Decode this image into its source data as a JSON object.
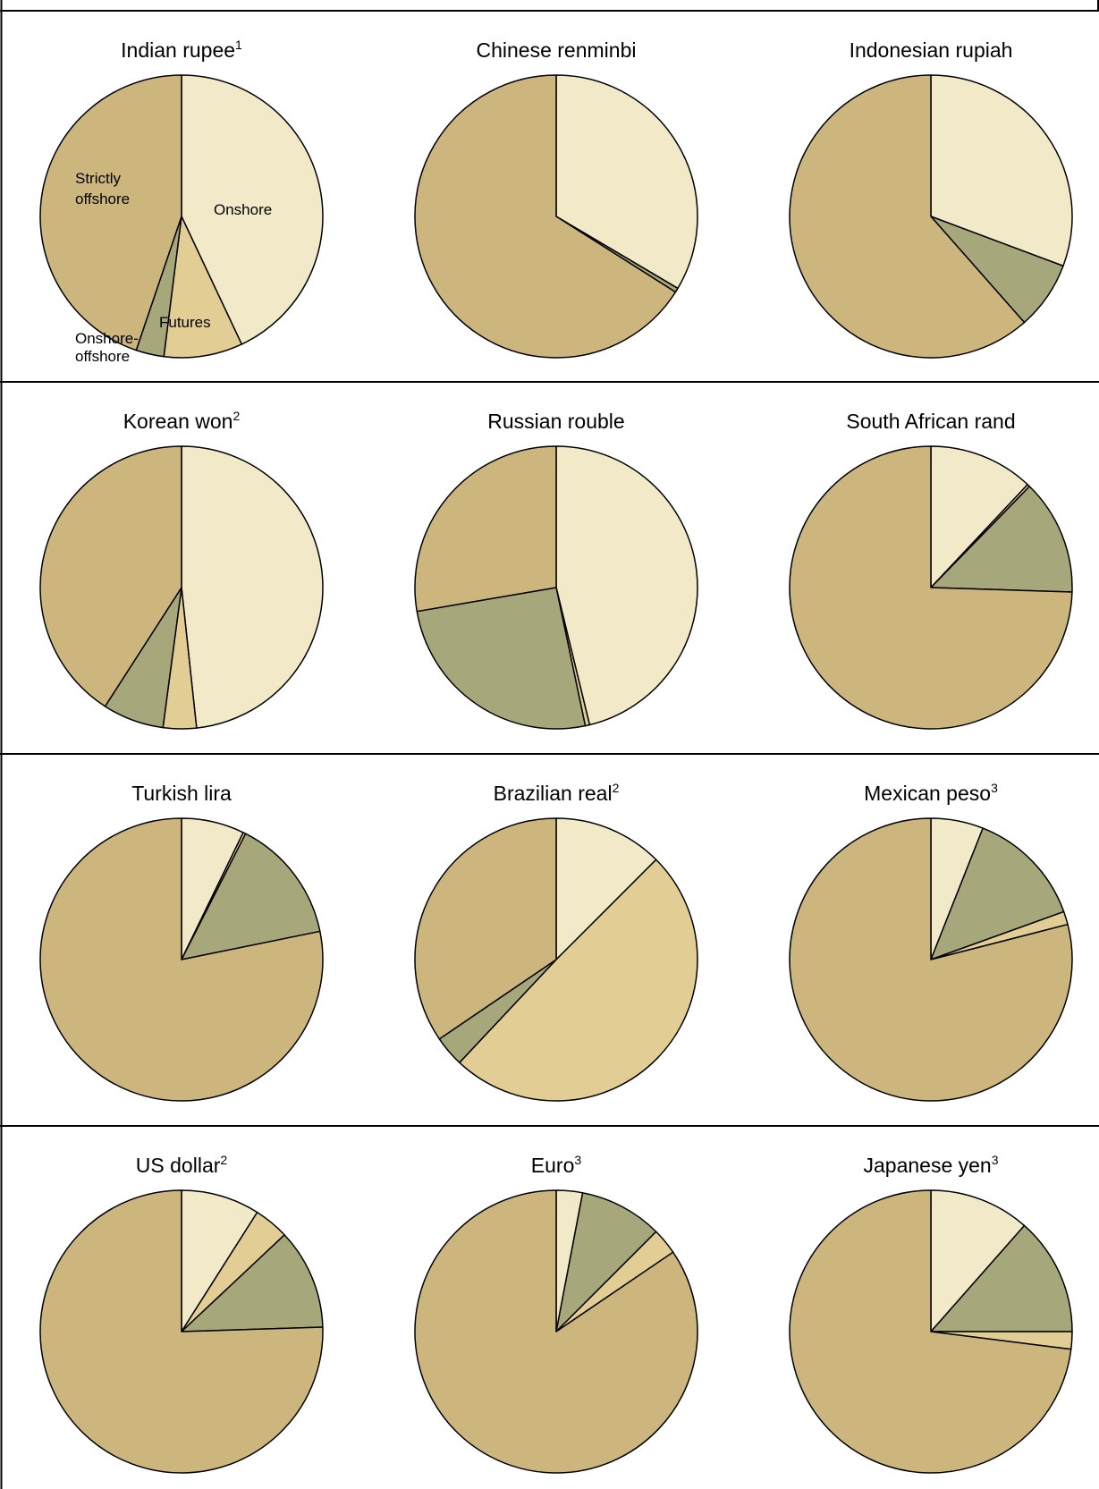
{
  "colors": {
    "onshore": "#F2E9C8",
    "futures": "#E2CE94",
    "onshore_offshore": "#A7A77C",
    "strictly_offshore": "#CDB67E",
    "border": "#000000",
    "background": "#FFFFFF"
  },
  "legend_labels": {
    "onshore": "Onshore",
    "strictly_offshore_line1": "Strictly",
    "strictly_offshore_line2": "offshore",
    "futures": "Futures",
    "onshore_offshore_line1": "Onshore-",
    "onshore_offshore_line2": "offshore"
  },
  "chart_data": [
    {
      "type": "pie",
      "title": "Indian rupee",
      "title_sup": "1",
      "slice_order": [
        "Onshore",
        "Futures",
        "Onshore-offshore",
        "Strictly offshore"
      ],
      "values": [
        43.0,
        9.0,
        3.2,
        44.8
      ]
    },
    {
      "type": "pie",
      "title": "Chinese renminbi",
      "title_sup": "",
      "slice_order": [
        "Onshore",
        "Futures",
        "Onshore-offshore",
        "Strictly offshore"
      ],
      "values": [
        33.5,
        0.0,
        0.5,
        66.0
      ]
    },
    {
      "type": "pie",
      "title": "Indonesian rupiah",
      "title_sup": "",
      "slice_order": [
        "Onshore",
        "Futures",
        "Onshore-offshore",
        "Strictly offshore"
      ],
      "values": [
        30.7,
        0.0,
        7.8,
        61.5
      ]
    },
    {
      "type": "pie",
      "title": "Korean won",
      "title_sup": "2",
      "slice_order": [
        "Onshore",
        "Futures",
        "Onshore-offshore",
        "Strictly offshore"
      ],
      "values": [
        48.3,
        3.8,
        7.0,
        40.9
      ]
    },
    {
      "type": "pie",
      "title": "Russian rouble",
      "title_sup": "",
      "slice_order": [
        "Onshore",
        "Futures",
        "Onshore-offshore",
        "Strictly offshore"
      ],
      "values": [
        46.2,
        0.5,
        25.6,
        27.7
      ]
    },
    {
      "type": "pie",
      "title": "South African rand",
      "title_sup": "",
      "slice_order": [
        "Onshore",
        "Futures",
        "Onshore-offshore",
        "Strictly offshore"
      ],
      "values": [
        12.0,
        0.3,
        13.2,
        74.5
      ]
    },
    {
      "type": "pie",
      "title": "Turkish lira",
      "title_sup": "",
      "slice_order": [
        "Onshore",
        "Futures",
        "Onshore-offshore",
        "Strictly offshore"
      ],
      "values": [
        7.2,
        0.3,
        14.3,
        78.2
      ]
    },
    {
      "type": "pie",
      "title": "Brazilian real",
      "title_sup": "2",
      "slice_order": [
        "Onshore",
        "Futures",
        "Onshore-offshore",
        "Strictly offshore"
      ],
      "values": [
        12.5,
        49.5,
        3.5,
        34.5
      ]
    },
    {
      "type": "pie",
      "title": "Mexican peso",
      "title_sup": "3",
      "slice_order": [
        "Onshore",
        "Onshore-offshore",
        "Futures",
        "Strictly offshore"
      ],
      "values": [
        6.0,
        13.5,
        1.5,
        79.0
      ]
    },
    {
      "type": "pie",
      "title": "US dollar",
      "title_sup": "2",
      "slice_order": [
        "Onshore",
        "Futures",
        "Onshore-offshore",
        "Strictly offshore"
      ],
      "values": [
        9.0,
        4.0,
        11.5,
        75.5
      ]
    },
    {
      "type": "pie",
      "title": "Euro",
      "title_sup": "3",
      "slice_order": [
        "Onshore",
        "Onshore-offshore",
        "Futures",
        "Strictly offshore"
      ],
      "values": [
        3.0,
        9.5,
        3.0,
        84.5
      ]
    },
    {
      "type": "pie",
      "title": "Japanese yen",
      "title_sup": "3",
      "slice_order": [
        "Onshore",
        "Onshore-offshore",
        "Futures",
        "Strictly offshore"
      ],
      "values": [
        11.5,
        13.5,
        2.0,
        73.0
      ]
    }
  ]
}
